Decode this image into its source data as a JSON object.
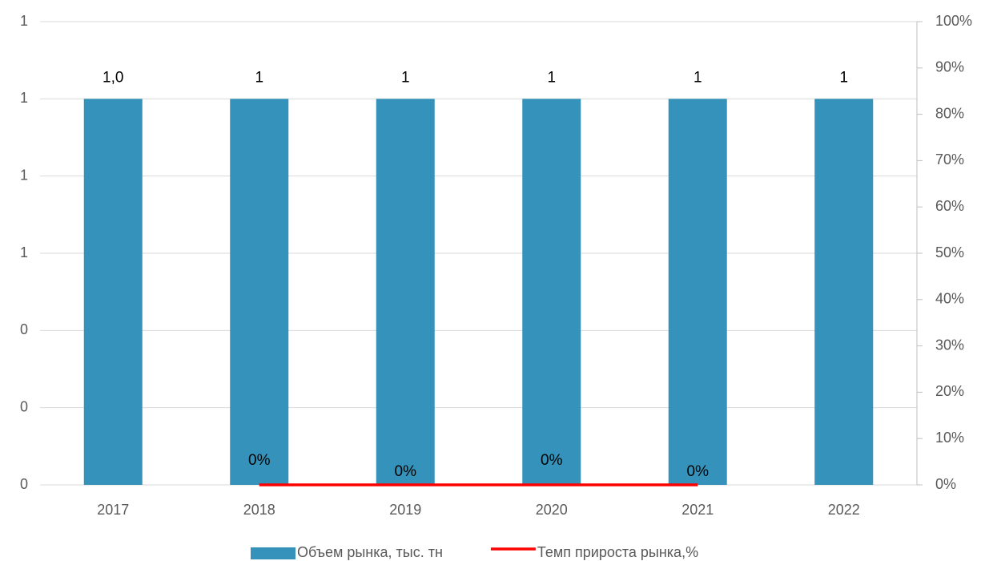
{
  "chart_data": {
    "type": "bar",
    "categories": [
      "2017",
      "2018",
      "2019",
      "2020",
      "2021",
      "2022"
    ],
    "series": [
      {
        "name": "Объем рынка, тыс. тн",
        "type": "bar",
        "color": "#3593bb",
        "values": [
          1,
          1,
          1,
          1,
          1,
          1
        ],
        "value_labels": [
          "1,0",
          "1",
          "1",
          "1",
          "1",
          "1"
        ]
      },
      {
        "name": "Темп прироста рынка,%",
        "type": "line",
        "color": "#ff0000",
        "axis": "y2",
        "values": [
          null,
          0,
          0,
          0,
          0,
          null
        ],
        "value_labels": [
          null,
          "0%",
          "0%",
          "0%",
          "0%",
          null
        ]
      }
    ],
    "ylim": [
      0,
      1.2
    ],
    "yticks": [
      0,
      {
        "value": 0.2,
        "label": "0"
      },
      {
        "value": 0.4,
        "label": "0"
      },
      {
        "value": 0.6,
        "label": "1"
      },
      {
        "value": 0.8,
        "label": "1"
      },
      1,
      {
        "value": 1.2,
        "label": "1"
      }
    ],
    "y2lim": [
      0,
      100
    ],
    "y2ticks": [
      {
        "value": 0,
        "label": "0%"
      },
      {
        "value": 10,
        "label": "10%"
      },
      {
        "value": 20,
        "label": "20%"
      },
      {
        "value": 30,
        "label": "30%"
      },
      {
        "value": 40,
        "label": "40%"
      },
      {
        "value": 50,
        "label": "50%"
      },
      {
        "value": 60,
        "label": "60%"
      },
      {
        "value": 70,
        "label": "70%"
      },
      {
        "value": 80,
        "label": "80%"
      },
      {
        "value": 90,
        "label": "90%"
      },
      {
        "value": 100,
        "label": "100%"
      }
    ],
    "grid": true,
    "legend": "bottom"
  }
}
